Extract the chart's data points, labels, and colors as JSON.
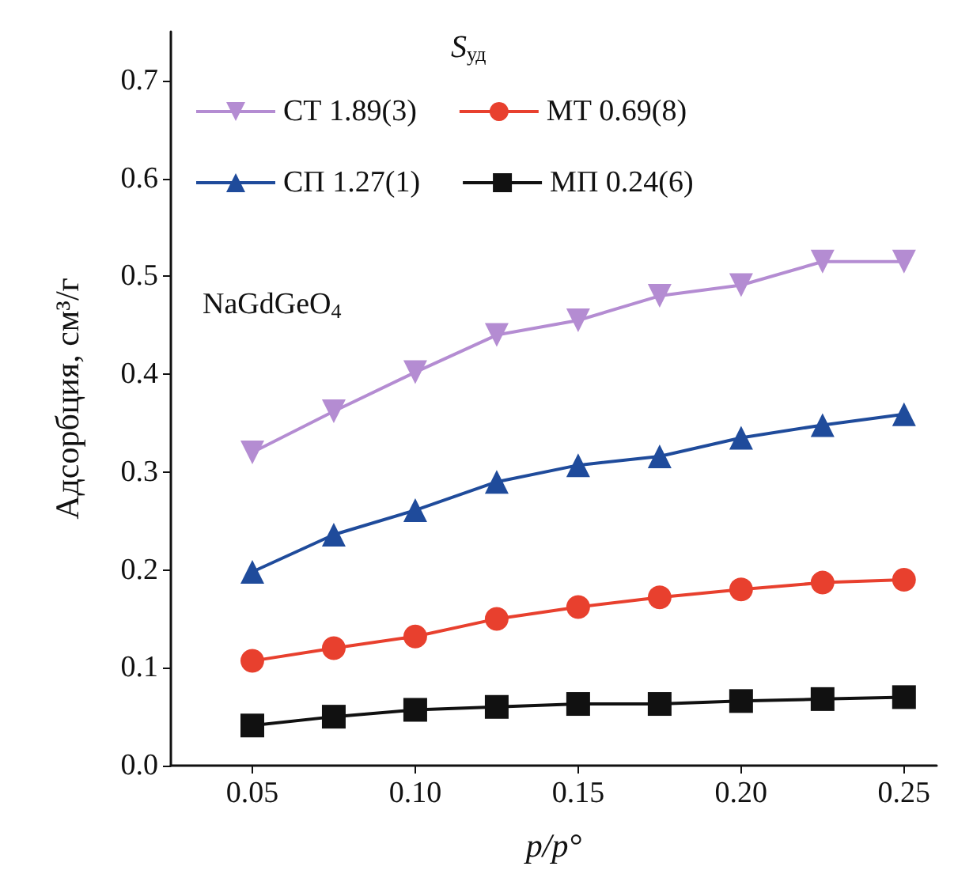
{
  "chart_data": {
    "type": "line",
    "xlabel": "p/p°",
    "ylabel": "Адсорбция, см³/г",
    "legend_title": "S$_{уд}$",
    "annotations": [
      "NaGdGeO$_{4}$"
    ],
    "x": [
      0.05,
      0.075,
      0.1,
      0.125,
      0.15,
      0.175,
      0.2,
      0.225,
      0.25
    ],
    "series": [
      {
        "name": "СТ 1.89(3)",
        "color": "#b48cd2",
        "marker": "triangle-down",
        "values": [
          0.32,
          0.362,
          0.402,
          0.44,
          0.455,
          0.48,
          0.491,
          0.515,
          0.515
        ]
      },
      {
        "name": "МТ 0.69(8)",
        "color": "#e8402e",
        "marker": "circle",
        "values": [
          0.107,
          0.12,
          0.132,
          0.15,
          0.162,
          0.172,
          0.18,
          0.187,
          0.19
        ]
      },
      {
        "name": "СП 1.27(1)",
        "color": "#1f4b9b",
        "marker": "triangle",
        "values": [
          0.198,
          0.236,
          0.261,
          0.29,
          0.307,
          0.316,
          0.335,
          0.348,
          0.359
        ]
      },
      {
        "name": "МП 0.24(6)",
        "color": "#111111",
        "marker": "square",
        "values": [
          0.041,
          0.05,
          0.057,
          0.06,
          0.063,
          0.063,
          0.066,
          0.068,
          0.07
        ]
      }
    ],
    "xlim": [
      0.025,
      0.26
    ],
    "xticks": [
      0.05,
      {
        "value": 0.1,
        "label": "0.10"
      },
      0.15,
      {
        "value": 0.2,
        "label": "0.20"
      },
      0.25
    ],
    "ylim": [
      0,
      0.75
    ],
    "yticks": [
      {
        "value": 0,
        "label": "0.0"
      },
      0.1,
      0.2,
      0.3,
      0.4,
      0.5,
      0.6,
      0.7
    ],
    "grid": false,
    "legend": "top",
    "line_style": "solid"
  }
}
